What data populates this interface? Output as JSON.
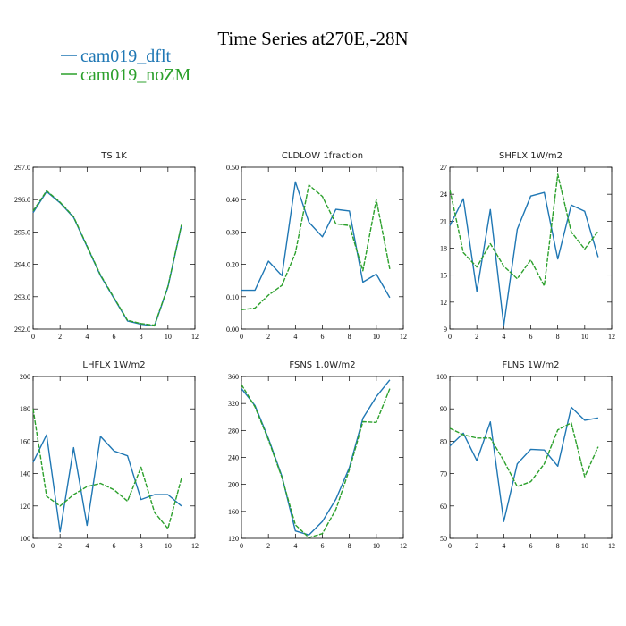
{
  "figure": {
    "title": "Time Series at270E,-28N",
    "legend": [
      {
        "label": "cam019_dflt",
        "color": "#1f77b4",
        "dash": "solid"
      },
      {
        "label": "cam019_noZM",
        "color": "#2ca02c",
        "dash": "dashed"
      }
    ]
  },
  "chart_data": [
    {
      "type": "line",
      "title": "TS   1K",
      "x": [
        0,
        1,
        2,
        3,
        4,
        5,
        6,
        7,
        8,
        9,
        10,
        11
      ],
      "xlim": [
        0,
        12
      ],
      "xticks": [
        0,
        2,
        4,
        6,
        8,
        10,
        12
      ],
      "xtick_labels": [
        "0",
        "2",
        "4",
        "6",
        "8",
        "10",
        "12"
      ],
      "ylim": [
        292,
        297
      ],
      "yticks": [
        292,
        293,
        294,
        295,
        296,
        297
      ],
      "ytick_labels": [
        "292.0",
        "293.0",
        "294.0",
        "295.0",
        "296.0",
        "297.0"
      ],
      "series": [
        {
          "name": "cam019_dflt",
          "values": [
            295.6,
            296.25,
            295.9,
            295.45,
            294.55,
            293.65,
            292.95,
            292.25,
            292.15,
            292.1,
            293.3,
            295.2
          ]
        },
        {
          "name": "cam019_noZM",
          "values": [
            295.65,
            296.27,
            295.92,
            295.47,
            294.57,
            293.67,
            292.97,
            292.27,
            292.17,
            292.12,
            293.32,
            295.22
          ]
        }
      ]
    },
    {
      "type": "line",
      "title": "CLDLOW   1fraction",
      "x": [
        0,
        1,
        2,
        3,
        4,
        5,
        6,
        7,
        8,
        9,
        10,
        11
      ],
      "xlim": [
        0,
        12
      ],
      "xticks": [
        0,
        2,
        4,
        6,
        8,
        10,
        12
      ],
      "xtick_labels": [
        "0",
        "2",
        "4",
        "6",
        "8",
        "10",
        "12"
      ],
      "ylim": [
        0,
        0.5
      ],
      "yticks": [
        0,
        0.1,
        0.2,
        0.3,
        0.4,
        0.5
      ],
      "ytick_labels": [
        "0.00",
        "0.10",
        "0.20",
        "0.30",
        "0.40",
        "0.50"
      ],
      "series": [
        {
          "name": "cam019_dflt",
          "values": [
            0.12,
            0.12,
            0.21,
            0.165,
            0.455,
            0.33,
            0.285,
            0.37,
            0.365,
            0.145,
            0.17,
            0.097
          ]
        },
        {
          "name": "cam019_noZM",
          "values": [
            0.06,
            0.065,
            0.105,
            0.135,
            0.235,
            0.445,
            0.41,
            0.325,
            0.32,
            0.18,
            0.4,
            0.185
          ]
        }
      ]
    },
    {
      "type": "line",
      "title": "SHFLX   1W/m2",
      "x": [
        0,
        1,
        2,
        3,
        4,
        5,
        6,
        7,
        8,
        9,
        10,
        11
      ],
      "xlim": [
        0,
        12
      ],
      "xticks": [
        0,
        2,
        4,
        6,
        8,
        10,
        12
      ],
      "xtick_labels": [
        "0",
        "2",
        "4",
        "6",
        "8",
        "10",
        "12"
      ],
      "ylim": [
        9,
        27
      ],
      "yticks": [
        9,
        12,
        15,
        18,
        21,
        24,
        27
      ],
      "ytick_labels": [
        "9",
        "12",
        "15",
        "18",
        "21",
        "24",
        "27"
      ],
      "series": [
        {
          "name": "cam019_dflt",
          "values": [
            20.5,
            23.5,
            13.2,
            22.3,
            9.4,
            20.1,
            23.8,
            24.2,
            16.8,
            22.8,
            22.1,
            17.0
          ]
        },
        {
          "name": "cam019_noZM",
          "values": [
            24.5,
            17.5,
            15.9,
            18.5,
            16.0,
            14.6,
            16.7,
            13.8,
            26.2,
            19.8,
            17.9,
            19.9
          ]
        }
      ]
    },
    {
      "type": "line",
      "title": "LHFLX   1W/m2",
      "x": [
        0,
        1,
        2,
        3,
        4,
        5,
        6,
        7,
        8,
        9,
        10,
        11
      ],
      "xlim": [
        0,
        12
      ],
      "xticks": [
        0,
        2,
        4,
        6,
        8,
        10,
        12
      ],
      "xtick_labels": [
        "0",
        "2",
        "4",
        "6",
        "8",
        "10",
        "12"
      ],
      "ylim": [
        100,
        200
      ],
      "yticks": [
        100,
        120,
        140,
        160,
        180,
        200
      ],
      "ytick_labels": [
        "100",
        "120",
        "140",
        "160",
        "180",
        "200"
      ],
      "series": [
        {
          "name": "cam019_dflt",
          "values": [
            147,
            164,
            104,
            156,
            108,
            163,
            154,
            151,
            124,
            127,
            127,
            120
          ]
        },
        {
          "name": "cam019_noZM",
          "values": [
            180,
            126,
            120,
            127,
            132,
            134,
            130,
            123,
            144,
            116,
            106,
            137
          ]
        }
      ]
    },
    {
      "type": "line",
      "title": "FSNS   1.0W/m2",
      "x": [
        0,
        1,
        2,
        3,
        4,
        5,
        6,
        7,
        8,
        9,
        10,
        11
      ],
      "xlim": [
        0,
        12
      ],
      "xticks": [
        0,
        2,
        4,
        6,
        8,
        10,
        12
      ],
      "xtick_labels": [
        "0",
        "2",
        "4",
        "6",
        "8",
        "10",
        "12"
      ],
      "ylim": [
        120,
        360
      ],
      "yticks": [
        120,
        160,
        200,
        240,
        280,
        320,
        360
      ],
      "ytick_labels": [
        "120",
        "160",
        "200",
        "240",
        "280",
        "320",
        "360"
      ],
      "series": [
        {
          "name": "cam019_dflt",
          "values": [
            342,
            317,
            268,
            212,
            131,
            125,
            145,
            178,
            225,
            298,
            330,
            355
          ]
        },
        {
          "name": "cam019_noZM",
          "values": [
            348,
            315,
            266,
            210,
            140,
            121,
            127,
            163,
            222,
            293,
            292,
            342
          ]
        }
      ]
    },
    {
      "type": "line",
      "title": "FLNS   1W/m2",
      "x": [
        0,
        1,
        2,
        3,
        4,
        5,
        6,
        7,
        8,
        9,
        10,
        11
      ],
      "xlim": [
        0,
        12
      ],
      "xticks": [
        0,
        2,
        4,
        6,
        8,
        10,
        12
      ],
      "xtick_labels": [
        "0",
        "2",
        "4",
        "6",
        "8",
        "10",
        "12"
      ],
      "ylim": [
        50,
        100
      ],
      "yticks": [
        50,
        60,
        70,
        80,
        90,
        100
      ],
      "ytick_labels": [
        "50",
        "60",
        "70",
        "80",
        "90",
        "100"
      ],
      "series": [
        {
          "name": "cam019_dflt",
          "values": [
            78.5,
            82.5,
            74.0,
            86.0,
            55.2,
            73.0,
            77.5,
            77.3,
            72.3,
            90.5,
            86.5,
            87.2
          ]
        },
        {
          "name": "cam019_noZM",
          "values": [
            84,
            82,
            81,
            81,
            74,
            66,
            67.5,
            73,
            83.5,
            85.7,
            69,
            78.3
          ]
        }
      ]
    }
  ]
}
